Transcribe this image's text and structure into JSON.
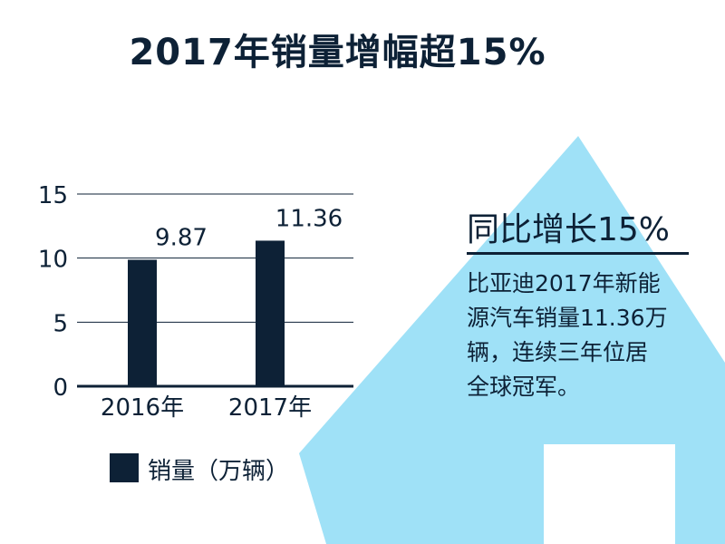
{
  "title": "2017年销量增幅超15%",
  "colors": {
    "bar": "#0d2136",
    "arrow": "#9fe1f7",
    "text": "#0d2136",
    "grid": "#0d2136"
  },
  "chart_data": {
    "type": "bar",
    "categories": [
      "2016年",
      "2017年"
    ],
    "series": [
      {
        "name": "销量（万辆）",
        "values": [
          9.87,
          11.36
        ]
      }
    ],
    "value_labels": [
      "9.87",
      "11.36"
    ],
    "yticks": [
      0,
      5,
      10,
      15
    ],
    "ylim": [
      0,
      15
    ],
    "grid": true,
    "legend": "bottom"
  },
  "legend": {
    "label": "销量（万辆）"
  },
  "side_panel": {
    "heading": "同比增长15%",
    "lines": [
      "比亚迪2017年新能",
      "源汽车销量11.36万",
      "辆，连续三年位居",
      "全球冠军。"
    ]
  }
}
